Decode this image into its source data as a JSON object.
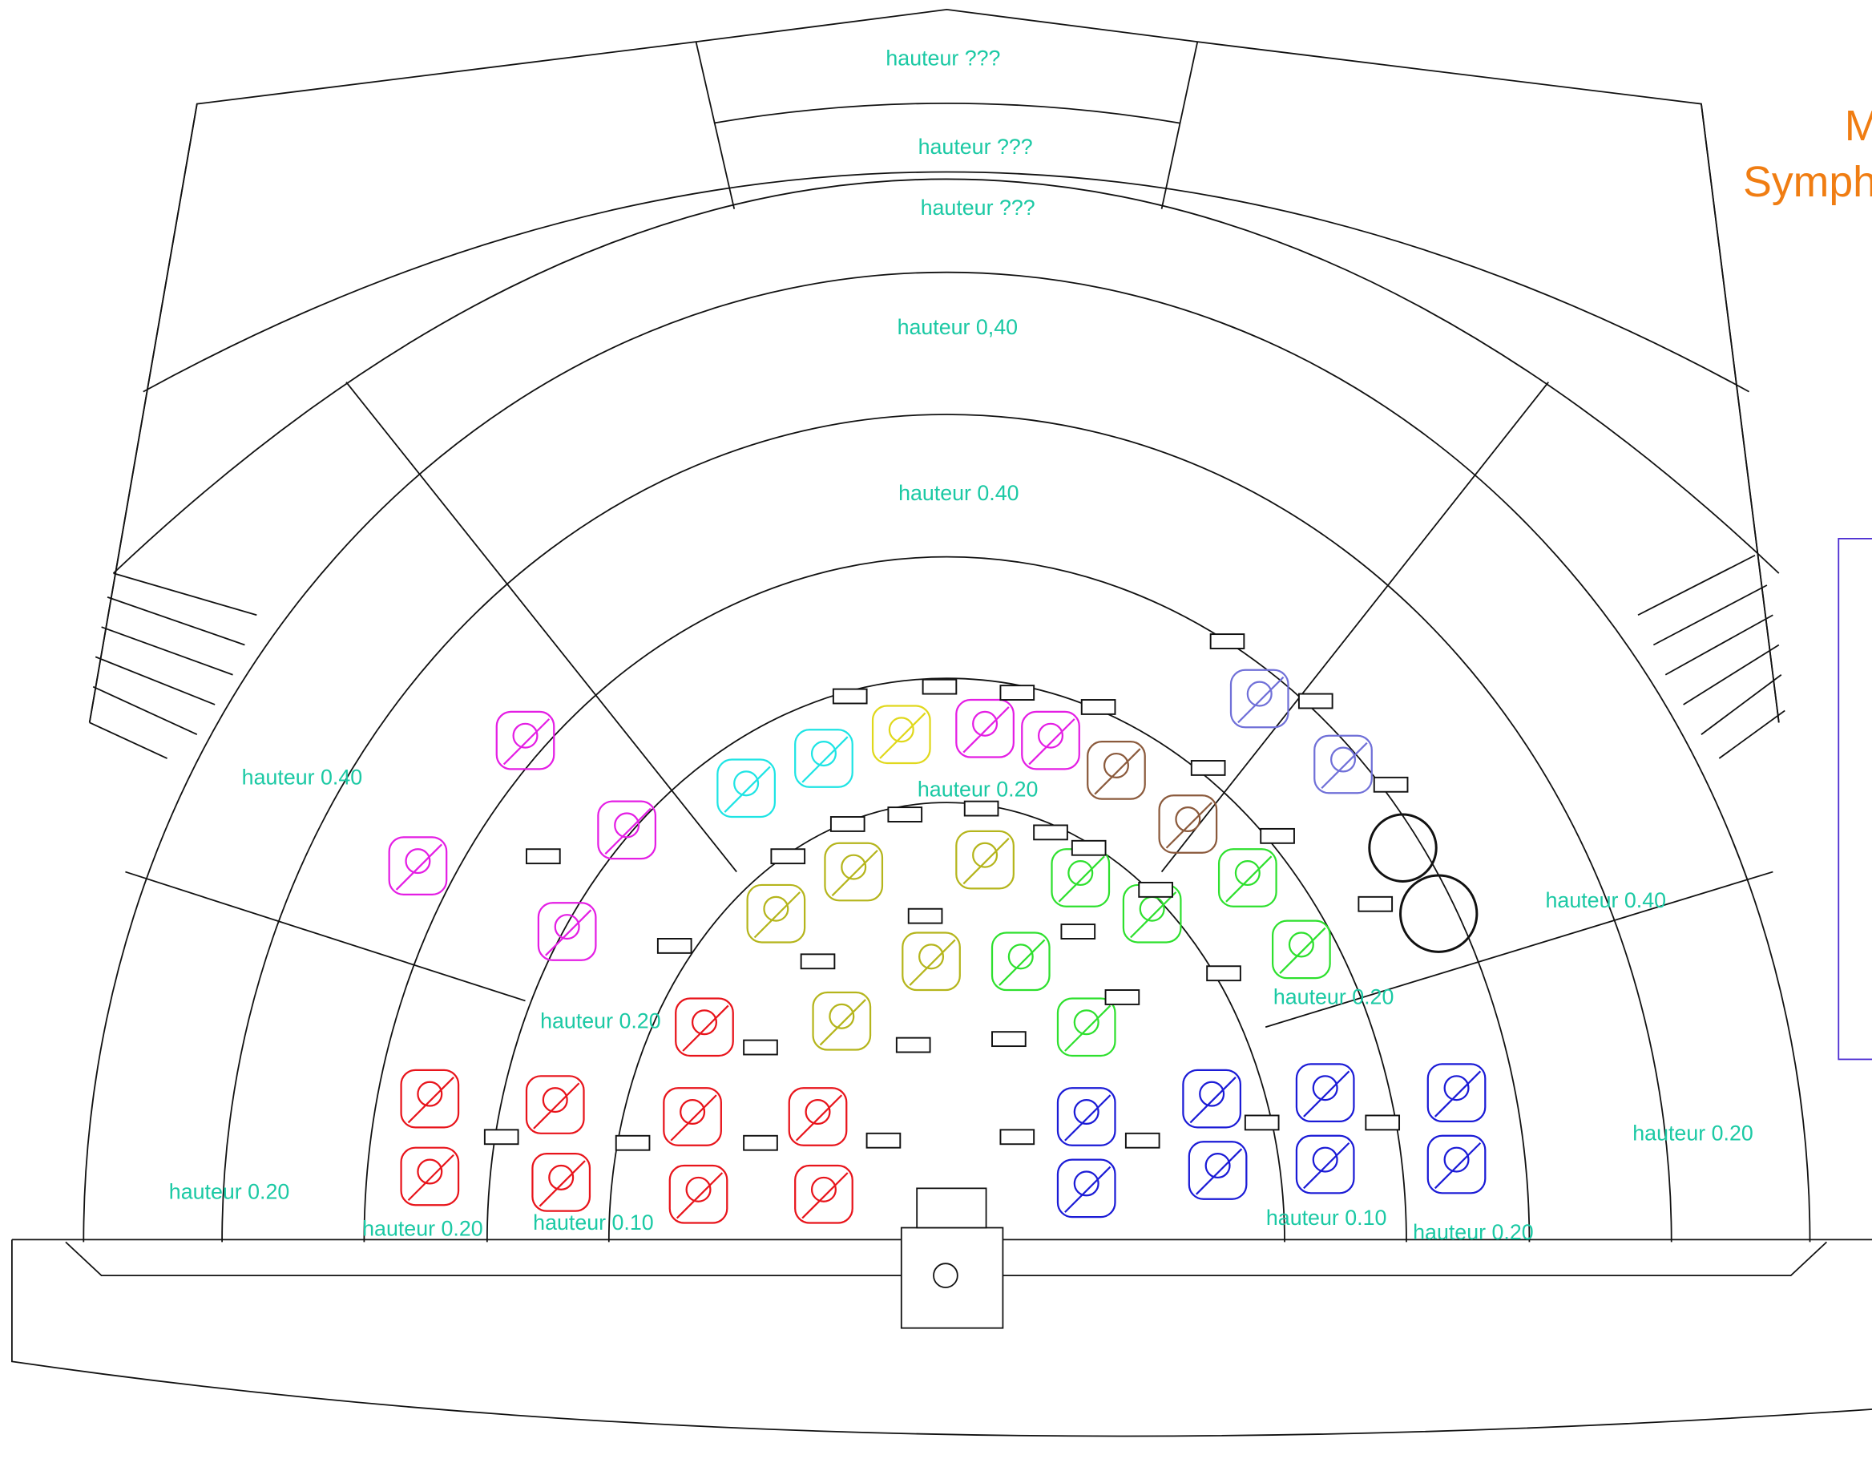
{
  "labels": [
    "hauteur ???",
    "hauteur ???",
    "hauteur ???",
    "hauteur 0,40",
    "hauteur 0.40",
    "hauteur 0.40",
    "hauteur 0.20",
    "hauteur 0.40",
    "hauteur 0.20",
    "hauteur 0.20",
    "hauteur 0.20",
    "hauteur 0.20",
    "hauteur 0.20",
    "hauteur 0.10",
    "hauteur 0.10",
    "hauteur 0.20"
  ],
  "title_lines": [
    "M",
    "Symph"
  ]
}
